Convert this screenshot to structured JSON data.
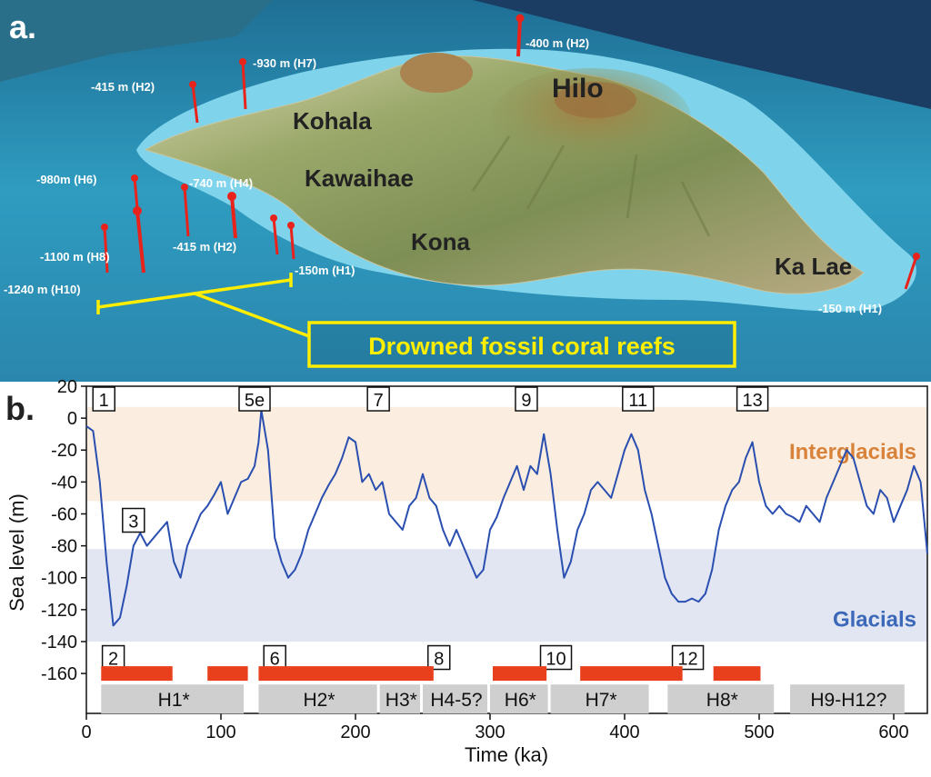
{
  "panel_a": {
    "label": "a.",
    "places": [
      {
        "name": "Hilo"
      },
      {
        "name": "Kohala"
      },
      {
        "name": "Kawaihae"
      },
      {
        "name": "Kona"
      },
      {
        "name": "Ka Lae"
      }
    ],
    "depth_labels": [
      "-400 m (H2)",
      "-930 m (H7)",
      "-415 m (H2)",
      "-980m (H6)",
      "-740 m (H4)",
      "-1100 m (H8)",
      "-415 m (H2)",
      "-150m (H1)",
      "-1240 m (H10)",
      "-150 m (H1)"
    ],
    "callout": "Drowned fossil coral reefs",
    "colors": {
      "ocean": "#2f9cc0",
      "shelf": "#7fd4ec",
      "land": "#8a9a5a",
      "marker": "#e8231c",
      "callout": "#ffee00"
    }
  },
  "panel_b": {
    "label": "b."
  },
  "chart_data": {
    "type": "line",
    "xlabel": "Time (ka)",
    "ylabel": "Sea level (m)",
    "xlim": [
      0,
      625
    ],
    "ylim": [
      -185,
      20
    ],
    "xticks": [
      "0",
      "100",
      "200",
      "300",
      "400",
      "500",
      "600"
    ],
    "yticks": [
      "20",
      "0",
      "-20",
      "-40",
      "-60",
      "-80",
      "-100",
      "-120",
      "-140",
      "-160"
    ],
    "grid": false,
    "series": [
      {
        "color": "#2a4fb0",
        "x": [
          0,
          5,
          10,
          15,
          20,
          25,
          30,
          35,
          40,
          45,
          50,
          55,
          60,
          65,
          70,
          75,
          80,
          85,
          90,
          95,
          100,
          105,
          110,
          115,
          120,
          125,
          128,
          130,
          135,
          140,
          145,
          150,
          155,
          160,
          165,
          170,
          175,
          180,
          185,
          190,
          195,
          200,
          205,
          210,
          215,
          220,
          225,
          230,
          235,
          240,
          245,
          250,
          255,
          260,
          265,
          270,
          275,
          280,
          285,
          290,
          295,
          300,
          305,
          310,
          315,
          320,
          325,
          330,
          335,
          340,
          345,
          350,
          355,
          360,
          365,
          370,
          375,
          380,
          385,
          390,
          395,
          400,
          405,
          410,
          415,
          420,
          425,
          430,
          435,
          440,
          445,
          450,
          455,
          460,
          465,
          470,
          475,
          480,
          485,
          490,
          495,
          500,
          505,
          510,
          515,
          520,
          525,
          530,
          535,
          540,
          545,
          550,
          555,
          560,
          565,
          570,
          575,
          580,
          585,
          590,
          595,
          600,
          605,
          610,
          615,
          620,
          625
        ],
        "y": [
          -5,
          -8,
          -40,
          -90,
          -130,
          -125,
          -105,
          -80,
          -72,
          -80,
          -75,
          -70,
          -65,
          -90,
          -100,
          -80,
          -70,
          -60,
          -55,
          -48,
          -40,
          -60,
          -50,
          -40,
          -38,
          -30,
          -15,
          5,
          -20,
          -75,
          -90,
          -100,
          -95,
          -85,
          -70,
          -60,
          -50,
          -42,
          -35,
          -25,
          -12,
          -15,
          -40,
          -35,
          -45,
          -40,
          -60,
          -65,
          -70,
          -55,
          -50,
          -35,
          -50,
          -55,
          -70,
          -80,
          -70,
          -80,
          -90,
          -100,
          -95,
          -70,
          -62,
          -50,
          -40,
          -30,
          -45,
          -30,
          -35,
          -10,
          -35,
          -70,
          -100,
          -90,
          -70,
          -60,
          -45,
          -40,
          -45,
          -50,
          -35,
          -20,
          -10,
          -20,
          -45,
          -60,
          -80,
          -100,
          -110,
          -115,
          -115,
          -113,
          -115,
          -110,
          -95,
          -70,
          -55,
          -45,
          -40,
          -25,
          -15,
          -40,
          -55,
          -60,
          -55,
          -60,
          -62,
          -65,
          -55,
          -60,
          -65,
          -50,
          -40,
          -30,
          -20,
          -25,
          -40,
          -55,
          -60,
          -45,
          -50,
          -65,
          -55,
          -45,
          -30,
          -40,
          -85
        ]
      }
    ],
    "bands": [
      {
        "label": "Interglacials",
        "from": 7,
        "to": -52,
        "color": "#fbeee0",
        "text_color": "#d9823a"
      },
      {
        "label": "Glacials",
        "from": -82,
        "to": -140,
        "color": "#e2e6f3",
        "text_color": "#3b68b8"
      }
    ],
    "mis_labels": [
      {
        "label": "1",
        "x": 13,
        "y": 12
      },
      {
        "label": "5e",
        "x": 125,
        "y": 12
      },
      {
        "label": "7",
        "x": 217,
        "y": 12
      },
      {
        "label": "9",
        "x": 327,
        "y": 12
      },
      {
        "label": "11",
        "x": 410,
        "y": 12
      },
      {
        "label": "13",
        "x": 495,
        "y": 12
      },
      {
        "label": "3",
        "x": 35,
        "y": -64
      },
      {
        "label": "2",
        "x": 20,
        "y": -150
      },
      {
        "label": "6",
        "x": 140,
        "y": -150
      },
      {
        "label": "8",
        "x": 262,
        "y": -150
      },
      {
        "label": "10",
        "x": 349,
        "y": -150
      },
      {
        "label": "12",
        "x": 447,
        "y": -150
      }
    ],
    "red_bars": [
      [
        11,
        64
      ],
      [
        90,
        120
      ],
      [
        128,
        258
      ],
      [
        302,
        342
      ],
      [
        367,
        443
      ],
      [
        466,
        501
      ]
    ],
    "reef_units": [
      {
        "label": "H1*",
        "x0": 11,
        "x1": 119
      },
      {
        "label": "H2*",
        "x0": 128,
        "x1": 218
      },
      {
        "label": "H3*",
        "x0": 218,
        "x1": 250
      },
      {
        "label": "H4-5?",
        "x0": 250,
        "x1": 300
      },
      {
        "label": "H6*",
        "x0": 300,
        "x1": 345
      },
      {
        "label": "H7*",
        "x0": 345,
        "x1": 420
      },
      {
        "label": "H8*",
        "x0": 432,
        "x1": 513
      },
      {
        "label": "H9-H12?",
        "x0": 523,
        "x1": 610
      }
    ],
    "colors": {
      "red_bar": "#e8401c",
      "reef_unit": "#cfcfcf"
    }
  }
}
